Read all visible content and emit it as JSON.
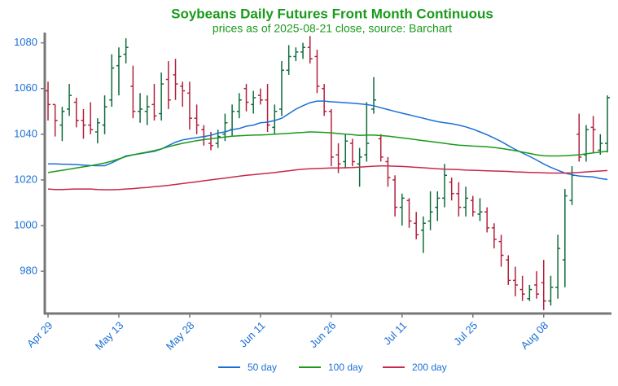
{
  "chart_data": {
    "type": "ohlc",
    "title": "Soybeans Daily Futures Front Month Continuous",
    "subtitle": "prices as of 2025-08-21 close, source: Barchart",
    "categories": [
      "Apr 29",
      null,
      null,
      null,
      null,
      null,
      null,
      null,
      null,
      null,
      "May 13",
      null,
      null,
      null,
      null,
      null,
      null,
      null,
      null,
      null,
      "May 28",
      null,
      null,
      null,
      null,
      null,
      null,
      null,
      null,
      null,
      "Jun 11",
      null,
      null,
      null,
      null,
      null,
      null,
      null,
      null,
      null,
      "Jun 26",
      null,
      null,
      null,
      null,
      null,
      null,
      null,
      null,
      null,
      "Jul 11",
      null,
      null,
      null,
      null,
      null,
      null,
      null,
      null,
      null,
      "Jul 25",
      null,
      null,
      null,
      null,
      null,
      null,
      null,
      null,
      null,
      "Aug 08",
      null,
      null,
      null,
      null,
      null,
      null,
      null,
      null,
      null
    ],
    "ohlc": {
      "open": [
        1059,
        1053,
        1044,
        1051,
        1054,
        1046,
        1044,
        1041,
        1044,
        1055,
        1070,
        1075,
        1061,
        1050,
        1050,
        1053,
        1049,
        1064,
        1066,
        1061,
        1058,
        1047,
        1042,
        1036,
        1036,
        1040,
        1042,
        1050,
        1060,
        1053,
        1057,
        1055,
        1043,
        1051,
        1068,
        1074,
        1076,
        1078,
        1074,
        1060,
        1050,
        1031,
        1028,
        1036,
        1027,
        1031,
        1051,
        1038,
        1028,
        1020,
        1008,
        1011,
        1001,
        998,
        1002,
        1008,
        1012,
        1019,
        1014,
        1008,
        1011,
        1005,
        1006,
        999,
        993,
        985,
        976,
        972,
        968,
        974,
        975,
        967,
        973,
        985,
        1011,
        1040,
        1031,
        1043,
        1033,
        1036
      ],
      "high": [
        1063,
        1053,
        1052,
        1062,
        1056,
        1051,
        1054,
        1047,
        1057,
        1075,
        1078,
        1082,
        1070,
        1058,
        1057,
        1062,
        1067,
        1072,
        1073,
        1063,
        1063,
        1053,
        1044,
        1041,
        1042,
        1049,
        1053,
        1058,
        1062,
        1059,
        1060,
        1062,
        1053,
        1072,
        1079,
        1078,
        1080,
        1083,
        1077,
        1062,
        1051,
        1036,
        1040,
        1038,
        1034,
        1054,
        1065,
        1040,
        1030,
        1022,
        1014,
        1012,
        1006,
        1004,
        1015,
        1015,
        1027,
        1021,
        1019,
        1017,
        1013,
        1012,
        1008,
        1001,
        996,
        987,
        982,
        978,
        974,
        980,
        985,
        978,
        996,
        1016,
        1026,
        1049,
        1044,
        1048,
        1040,
        1057
      ],
      "low": [
        1046,
        1039,
        1037,
        1048,
        1043,
        1038,
        1040,
        1036,
        1040,
        1052,
        1057,
        1071,
        1047,
        1045,
        1044,
        1046,
        1046,
        1051,
        1055,
        1052,
        1042,
        1040,
        1035,
        1033,
        1034,
        1037,
        1039,
        1047,
        1050,
        1049,
        1053,
        1041,
        1040,
        1048,
        1066,
        1072,
        1073,
        1071,
        1058,
        1048,
        1026,
        1023,
        1025,
        1026,
        1017,
        1028,
        1049,
        1028,
        1017,
        1004,
        1000,
        999,
        994,
        988,
        998,
        1002,
        1008,
        1011,
        1004,
        1004,
        1004,
        1002,
        997,
        990,
        982,
        974,
        969,
        967,
        967,
        968,
        963,
        965,
        968,
        973,
        1009,
        1028,
        1028,
        1032,
        1031,
        1032
      ],
      "close": [
        1053,
        1046,
        1050,
        1057,
        1046,
        1044,
        1042,
        1045,
        1052,
        1069,
        1074,
        1078,
        1050,
        1051,
        1052,
        1048,
        1062,
        1055,
        1062,
        1059,
        1047,
        1044,
        1039,
        1035,
        1039,
        1045,
        1050,
        1055,
        1054,
        1056,
        1055,
        1044,
        1050,
        1068,
        1074,
        1076,
        1078,
        1073,
        1061,
        1050,
        1030,
        1027,
        1037,
        1028,
        1030,
        1036,
        1055,
        1030,
        1021,
        1008,
        1012,
        1002,
        996,
        1001,
        1006,
        1012,
        1022,
        1014,
        1008,
        1012,
        1006,
        1006,
        999,
        994,
        987,
        976,
        974,
        970,
        972,
        970,
        967,
        973,
        990,
        1013,
        1022,
        1030,
        1042,
        1042,
        1036,
        1056
      ]
    },
    "up_color": "#0e6b3c",
    "down_color": "#b3213c",
    "series": [
      {
        "name": "50 day",
        "color": "#1a6fd6",
        "values": [
          1027,
          1027,
          1026.9,
          1026.8,
          1026.7,
          1026.5,
          1026.3,
          1026.2,
          1026.2,
          1027.5,
          1029,
          1030.5,
          1031,
          1031.5,
          1032,
          1032.5,
          1033.5,
          1035,
          1036.5,
          1037.5,
          1038,
          1038.5,
          1039,
          1039.5,
          1040.5,
          1041,
          1042,
          1042.5,
          1043.5,
          1044,
          1045,
          1045.3,
          1046,
          1047,
          1049,
          1051,
          1052.5,
          1053.8,
          1054.5,
          1054.5,
          1054.2,
          1054,
          1053.8,
          1053.6,
          1053.3,
          1053,
          1052.5,
          1051.6,
          1050.8,
          1050,
          1049.2,
          1048.5,
          1047.7,
          1047,
          1046.2,
          1045.5,
          1045,
          1044.6,
          1044,
          1043.2,
          1042.2,
          1041,
          1039.8,
          1038.3,
          1036.8,
          1035,
          1033.3,
          1031.8,
          1030.3,
          1028.7,
          1027,
          1025.5,
          1024.2,
          1023,
          1022.2,
          1021.7,
          1021.5,
          1021.3,
          1020.6,
          1020.2
        ]
      },
      {
        "name": "100 day",
        "color": "#1a9a1a",
        "values": [
          1023.2,
          1023.7,
          1024.2,
          1024.7,
          1025.2,
          1025.7,
          1026.2,
          1026.8,
          1027.4,
          1028.2,
          1029.2,
          1030.2,
          1031,
          1031.6,
          1032.2,
          1032.8,
          1033.6,
          1034.5,
          1035.3,
          1036,
          1036.6,
          1037.2,
          1037.6,
          1038,
          1038.4,
          1038.8,
          1039.1,
          1039.3,
          1039.5,
          1039.6,
          1039.7,
          1039.8,
          1040,
          1040.2,
          1040.4,
          1040.6,
          1040.8,
          1041,
          1040.9,
          1040.8,
          1040.6,
          1040.3,
          1040,
          1039.8,
          1039.5,
          1039.6,
          1039.6,
          1039.4,
          1039.2,
          1038.8,
          1038.4,
          1038,
          1037.6,
          1037.2,
          1036.8,
          1036.4,
          1036,
          1035.6,
          1035.2,
          1035,
          1034.8,
          1034.7,
          1034.5,
          1034.2,
          1033.8,
          1033.3,
          1032.8,
          1032.2,
          1031.6,
          1031,
          1030.6,
          1030.5,
          1030.5,
          1030.6,
          1030.8,
          1031,
          1031.4,
          1031.8,
          1032.2,
          1032.6
        ]
      },
      {
        "name": "200 day",
        "color": "#c8284a",
        "values": [
          1016,
          1015.8,
          1015.8,
          1015.9,
          1016,
          1016,
          1016,
          1015.8,
          1015.7,
          1015.7,
          1015.8,
          1016,
          1016.2,
          1016.5,
          1016.7,
          1017,
          1017.3,
          1017.6,
          1018,
          1018.4,
          1018.8,
          1019.2,
          1019.6,
          1020,
          1020.4,
          1020.8,
          1021.2,
          1021.6,
          1022,
          1022.3,
          1022.6,
          1022.9,
          1023.2,
          1023.6,
          1024,
          1024.4,
          1024.7,
          1024.9,
          1025,
          1025.1,
          1025.2,
          1025.2,
          1025.3,
          1025.4,
          1025.6,
          1025.8,
          1026,
          1026.1,
          1026.1,
          1026,
          1025.9,
          1025.7,
          1025.5,
          1025.3,
          1025.1,
          1024.9,
          1024.7,
          1024.6,
          1024.5,
          1024.3,
          1024.2,
          1024.1,
          1024,
          1023.9,
          1023.8,
          1023.7,
          1023.5,
          1023.4,
          1023.3,
          1023.2,
          1023.1,
          1023,
          1023,
          1023,
          1023.1,
          1023.3,
          1023.5,
          1023.7,
          1023.9,
          1024.1
        ]
      }
    ],
    "ylim": [
      961.5,
      1084.5
    ],
    "yticks": [
      980,
      1000,
      1020,
      1040,
      1060,
      1080
    ],
    "legend": "bottom",
    "grid": false
  }
}
